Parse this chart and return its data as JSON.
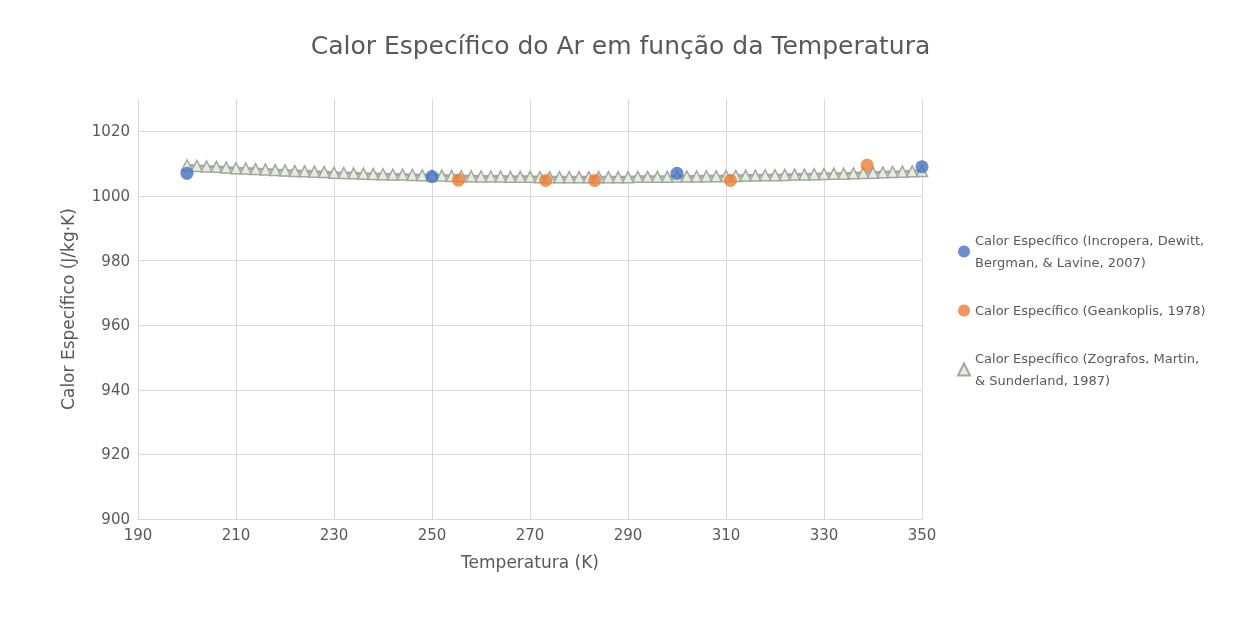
{
  "chart_data": {
    "type": "scatter",
    "title": "Calor Específico do Ar em função da Temperatura",
    "xlabel": "Temperatura (K)",
    "ylabel": "Calor Específico (J/kg·K)",
    "xlim": [
      190,
      350
    ],
    "xticks": [
      190,
      210,
      230,
      250,
      270,
      290,
      310,
      330,
      350
    ],
    "ylim": [
      900,
      1030
    ],
    "yticks": [
      900,
      920,
      940,
      960,
      980,
      1000,
      1020
    ],
    "grid": true,
    "legend": "right",
    "series": [
      {
        "name": "Calor Específico (Incropera, Dewitt, Bergman, & Lavine, 2007)",
        "marker": "circle",
        "color": "#4472c4",
        "x": [
          200,
          250,
          300,
          350
        ],
        "values": [
          1007,
          1006,
          1007,
          1009
        ]
      },
      {
        "name": "Calor Específico (Geankoplis, 1978)",
        "marker": "circle",
        "color": "#ed7d31",
        "x": [
          255.4,
          273.2,
          283.2,
          310.9,
          338.8
        ],
        "values": [
          1004.9,
          1004.8,
          1004.8,
          1004.8,
          1009.5
        ]
      },
      {
        "name": "Calor Específico (Zografos, Martin, & Sunderland, 1987)",
        "type": "line",
        "marker": "triangle",
        "color": "#a5a5a5",
        "x": [
          200,
          202,
          204,
          206,
          208,
          210,
          212,
          214,
          216,
          218,
          220,
          222,
          224,
          226,
          228,
          230,
          232,
          234,
          236,
          238,
          240,
          242,
          244,
          246,
          248,
          250,
          252,
          254,
          256,
          258,
          260,
          262,
          264,
          266,
          268,
          270,
          272,
          274,
          276,
          278,
          280,
          282,
          284,
          286,
          288,
          290,
          292,
          294,
          296,
          298,
          300,
          302,
          304,
          306,
          308,
          310,
          312,
          314,
          316,
          318,
          320,
          322,
          324,
          326,
          328,
          330,
          332,
          334,
          336,
          338,
          340,
          342,
          344,
          346,
          348,
          350
        ],
        "values": [
          1009.5,
          1009.3,
          1009.1,
          1009.0,
          1008.8,
          1008.6,
          1008.5,
          1008.3,
          1008.2,
          1008.0,
          1007.9,
          1007.7,
          1007.6,
          1007.5,
          1007.4,
          1007.2,
          1007.1,
          1007.0,
          1006.9,
          1006.8,
          1006.7,
          1006.6,
          1006.6,
          1006.5,
          1006.4,
          1006.3,
          1006.3,
          1006.2,
          1006.1,
          1006.1,
          1006.0,
          1006.0,
          1006.0,
          1005.9,
          1005.9,
          1005.9,
          1005.8,
          1005.8,
          1005.8,
          1005.8,
          1005.8,
          1005.8,
          1005.8,
          1005.8,
          1005.8,
          1005.8,
          1005.9,
          1005.9,
          1005.9,
          1005.9,
          1006.0,
          1006.0,
          1006.0,
          1006.1,
          1006.1,
          1006.2,
          1006.2,
          1006.3,
          1006.3,
          1006.4,
          1006.4,
          1006.5,
          1006.6,
          1006.6,
          1006.7,
          1006.8,
          1006.9,
          1006.9,
          1007.0,
          1007.1,
          1007.2,
          1007.3,
          1007.4,
          1007.5,
          1007.6,
          1007.7
        ]
      }
    ]
  }
}
